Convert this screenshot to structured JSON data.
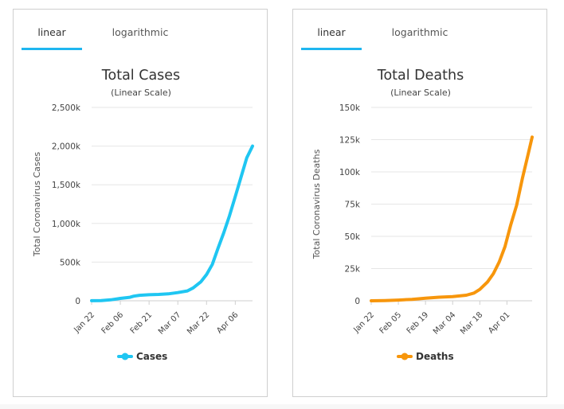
{
  "tabs": {
    "linear": "linear",
    "logarithmic": "logarithmic"
  },
  "colors": {
    "accent": "#1fb6f0",
    "cases": "#1fc6f2",
    "deaths": "#f7960c"
  },
  "chart_data": [
    {
      "type": "line",
      "title": "Total Cases",
      "subtitle": "(Linear Scale)",
      "ylabel": "Total Coronavirus Cases",
      "xlabel": "",
      "ylim": [
        0,
        2500000
      ],
      "yticks": [
        {
          "value": 0,
          "label": "0"
        },
        {
          "value": 500000,
          "label": "500k"
        },
        {
          "value": 1000000,
          "label": "1,000k"
        },
        {
          "value": 1500000,
          "label": "1,500k"
        },
        {
          "value": 2000000,
          "label": "2,000k"
        },
        {
          "value": 2500000,
          "label": "2,500k"
        }
      ],
      "x_range": [
        "Jan 22",
        "Apr 15"
      ],
      "xticks": [
        "Jan 22",
        "Feb 06",
        "Feb 21",
        "Mar 07",
        "Mar 22",
        "Apr 06"
      ],
      "grid": true,
      "legend": "bottom",
      "series": [
        {
          "name": "Cases",
          "color": "#1fc6f2",
          "points": [
            [
              "Jan 22",
              580
            ],
            [
              "Jan 27",
              2900
            ],
            [
              "Feb 01",
              12000
            ],
            [
              "Feb 06",
              31000
            ],
            [
              "Feb 11",
              45000
            ],
            [
              "Feb 13",
              60000
            ],
            [
              "Feb 16",
              71000
            ],
            [
              "Feb 21",
              78000
            ],
            [
              "Feb 26",
              82000
            ],
            [
              "Mar 02",
              90000
            ],
            [
              "Mar 07",
              106000
            ],
            [
              "Mar 12",
              128000
            ],
            [
              "Mar 15",
              167000
            ],
            [
              "Mar 19",
              245000
            ],
            [
              "Mar 22",
              340000
            ],
            [
              "Mar 25",
              470000
            ],
            [
              "Mar 28",
              680000
            ],
            [
              "Mar 31",
              880000
            ],
            [
              "Apr 03",
              1100000
            ],
            [
              "Apr 06",
              1350000
            ],
            [
              "Apr 09",
              1600000
            ],
            [
              "Apr 12",
              1850000
            ],
            [
              "Apr 15",
              2000000
            ]
          ]
        }
      ]
    },
    {
      "type": "line",
      "title": "Total Deaths",
      "subtitle": "(Linear Scale)",
      "ylabel": "Total Coronavirus Deaths",
      "xlabel": "",
      "ylim": [
        0,
        150000
      ],
      "yticks": [
        {
          "value": 0,
          "label": "0"
        },
        {
          "value": 25000,
          "label": "25k"
        },
        {
          "value": 50000,
          "label": "50k"
        },
        {
          "value": 75000,
          "label": "75k"
        },
        {
          "value": 100000,
          "label": "100k"
        },
        {
          "value": 125000,
          "label": "125k"
        },
        {
          "value": 150000,
          "label": "150k"
        }
      ],
      "x_range": [
        "Jan 22",
        "Apr 14"
      ],
      "xticks": [
        "Jan 22",
        "Feb 05",
        "Feb 19",
        "Mar 04",
        "Mar 18",
        "Apr 01"
      ],
      "grid": true,
      "legend": "bottom",
      "series": [
        {
          "name": "Deaths",
          "color": "#f7960c",
          "points": [
            [
              "Jan 22",
              17
            ],
            [
              "Jan 29",
              170
            ],
            [
              "Feb 05",
              560
            ],
            [
              "Feb 12",
              1100
            ],
            [
              "Feb 19",
              2000
            ],
            [
              "Feb 26",
              2800
            ],
            [
              "Mar 04",
              3200
            ],
            [
              "Mar 11",
              4300
            ],
            [
              "Mar 15",
              6000
            ],
            [
              "Mar 18",
              8800
            ],
            [
              "Mar 22",
              14600
            ],
            [
              "Mar 25",
              21000
            ],
            [
              "Mar 28",
              30000
            ],
            [
              "Mar 31",
              42000
            ],
            [
              "Apr 03",
              59000
            ],
            [
              "Apr 06",
              74000
            ],
            [
              "Apr 09",
              95000
            ],
            [
              "Apr 12",
              114000
            ],
            [
              "Apr 14",
              127000
            ]
          ]
        }
      ]
    }
  ]
}
